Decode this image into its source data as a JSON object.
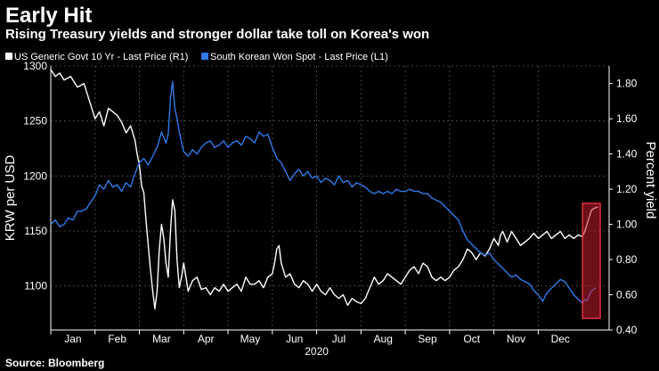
{
  "header": {
    "title": "Early Hit",
    "subtitle": "Rising Treasury yields and stronger dollar take toll on Korea's won"
  },
  "footer": {
    "source": "Source: Bloomberg"
  },
  "colors": {
    "us10y": "#ffffff",
    "krw": "#2f7bea",
    "highlight": "#e0303a"
  },
  "chart_data": {
    "type": "line",
    "xlabel": "2020",
    "x_ticks": [
      "Jan",
      "Feb",
      "Mar",
      "Apr",
      "May",
      "Jun",
      "Jul",
      "Aug",
      "Sep",
      "Oct",
      "Nov",
      "Dec"
    ],
    "x_range": [
      0,
      12.6
    ],
    "left_axis": {
      "label": "KRW per USD",
      "range": [
        1060,
        1300
      ],
      "ticks": [
        1100,
        1150,
        1200,
        1250,
        1300
      ]
    },
    "right_axis": {
      "label": "Percent yield",
      "range": [
        0.4,
        1.9
      ],
      "ticks": [
        "0.40",
        "0.60",
        "0.80",
        "1.00",
        "1.20",
        "1.40",
        "1.60",
        "1.80"
      ]
    },
    "grid": true,
    "legend": "top",
    "series": [
      {
        "name": "US Generic Govt 10 Yr - Last Price (R1)",
        "axis": "right",
        "points": [
          [
            0.0,
            1.88
          ],
          [
            0.1,
            1.84
          ],
          [
            0.2,
            1.86
          ],
          [
            0.3,
            1.82
          ],
          [
            0.45,
            1.84
          ],
          [
            0.6,
            1.78
          ],
          [
            0.75,
            1.8
          ],
          [
            0.9,
            1.68
          ],
          [
            1.0,
            1.6
          ],
          [
            1.1,
            1.64
          ],
          [
            1.2,
            1.56
          ],
          [
            1.3,
            1.66
          ],
          [
            1.4,
            1.64
          ],
          [
            1.5,
            1.62
          ],
          [
            1.6,
            1.58
          ],
          [
            1.7,
            1.52
          ],
          [
            1.8,
            1.56
          ],
          [
            1.9,
            1.48
          ],
          [
            1.95,
            1.4
          ],
          [
            2.0,
            1.34
          ],
          [
            2.05,
            1.22
          ],
          [
            2.1,
            1.18
          ],
          [
            2.15,
            1.02
          ],
          [
            2.2,
            0.88
          ],
          [
            2.25,
            0.74
          ],
          [
            2.3,
            0.62
          ],
          [
            2.35,
            0.52
          ],
          [
            2.4,
            0.62
          ],
          [
            2.45,
            0.86
          ],
          [
            2.5,
            1.0
          ],
          [
            2.55,
            0.92
          ],
          [
            2.6,
            0.78
          ],
          [
            2.65,
            0.7
          ],
          [
            2.7,
            0.96
          ],
          [
            2.75,
            1.14
          ],
          [
            2.8,
            1.08
          ],
          [
            2.85,
            0.8
          ],
          [
            2.9,
            0.64
          ],
          [
            2.95,
            0.7
          ],
          [
            3.0,
            0.78
          ],
          [
            3.1,
            0.62
          ],
          [
            3.2,
            0.68
          ],
          [
            3.3,
            0.7
          ],
          [
            3.4,
            0.63
          ],
          [
            3.5,
            0.64
          ],
          [
            3.6,
            0.6
          ],
          [
            3.7,
            0.64
          ],
          [
            3.8,
            0.62
          ],
          [
            3.9,
            0.66
          ],
          [
            4.0,
            0.62
          ],
          [
            4.1,
            0.64
          ],
          [
            4.2,
            0.66
          ],
          [
            4.3,
            0.62
          ],
          [
            4.4,
            0.7
          ],
          [
            4.5,
            0.66
          ],
          [
            4.6,
            0.66
          ],
          [
            4.7,
            0.68
          ],
          [
            4.8,
            0.64
          ],
          [
            4.9,
            0.7
          ],
          [
            5.0,
            0.72
          ],
          [
            5.05,
            0.78
          ],
          [
            5.1,
            0.86
          ],
          [
            5.15,
            0.88
          ],
          [
            5.2,
            0.78
          ],
          [
            5.3,
            0.7
          ],
          [
            5.4,
            0.72
          ],
          [
            5.5,
            0.66
          ],
          [
            5.6,
            0.64
          ],
          [
            5.7,
            0.68
          ],
          [
            5.8,
            0.66
          ],
          [
            5.9,
            0.62
          ],
          [
            6.0,
            0.66
          ],
          [
            6.1,
            0.62
          ],
          [
            6.2,
            0.6
          ],
          [
            6.3,
            0.64
          ],
          [
            6.4,
            0.6
          ],
          [
            6.5,
            0.58
          ],
          [
            6.6,
            0.6
          ],
          [
            6.7,
            0.54
          ],
          [
            6.8,
            0.58
          ],
          [
            6.9,
            0.56
          ],
          [
            7.0,
            0.55
          ],
          [
            7.1,
            0.58
          ],
          [
            7.2,
            0.64
          ],
          [
            7.3,
            0.7
          ],
          [
            7.4,
            0.66
          ],
          [
            7.5,
            0.68
          ],
          [
            7.6,
            0.72
          ],
          [
            7.7,
            0.7
          ],
          [
            7.8,
            0.68
          ],
          [
            7.9,
            0.66
          ],
          [
            8.0,
            0.7
          ],
          [
            8.1,
            0.74
          ],
          [
            8.2,
            0.76
          ],
          [
            8.3,
            0.72
          ],
          [
            8.4,
            0.78
          ],
          [
            8.5,
            0.76
          ],
          [
            8.6,
            0.7
          ],
          [
            8.7,
            0.68
          ],
          [
            8.8,
            0.7
          ],
          [
            8.9,
            0.68
          ],
          [
            9.0,
            0.7
          ],
          [
            9.1,
            0.74
          ],
          [
            9.2,
            0.76
          ],
          [
            9.3,
            0.8
          ],
          [
            9.4,
            0.86
          ],
          [
            9.5,
            0.84
          ],
          [
            9.6,
            0.8
          ],
          [
            9.7,
            0.84
          ],
          [
            9.8,
            0.82
          ],
          [
            9.9,
            0.86
          ],
          [
            10.0,
            0.92
          ],
          [
            10.1,
            0.88
          ],
          [
            10.15,
            0.94
          ],
          [
            10.2,
            0.96
          ],
          [
            10.3,
            0.9
          ],
          [
            10.4,
            0.96
          ],
          [
            10.5,
            0.92
          ],
          [
            10.6,
            0.88
          ],
          [
            10.7,
            0.9
          ],
          [
            10.8,
            0.92
          ],
          [
            10.9,
            0.95
          ],
          [
            11.0,
            0.92
          ],
          [
            11.1,
            0.94
          ],
          [
            11.2,
            0.96
          ],
          [
            11.3,
            0.92
          ],
          [
            11.4,
            0.94
          ],
          [
            11.5,
            0.96
          ],
          [
            11.6,
            0.92
          ],
          [
            11.7,
            0.94
          ],
          [
            11.8,
            0.92
          ],
          [
            11.9,
            0.94
          ],
          [
            12.0,
            0.93
          ],
          [
            12.05,
            0.96
          ],
          [
            12.1,
            1.0
          ],
          [
            12.15,
            1.04
          ],
          [
            12.2,
            1.08
          ],
          [
            12.25,
            1.09
          ],
          [
            12.35,
            1.1
          ]
        ]
      },
      {
        "name": "South Korean Won Spot - Last Price (L1)",
        "axis": "left",
        "points": [
          [
            0.0,
            1156
          ],
          [
            0.1,
            1160
          ],
          [
            0.2,
            1154
          ],
          [
            0.3,
            1156
          ],
          [
            0.4,
            1162
          ],
          [
            0.5,
            1160
          ],
          [
            0.6,
            1168
          ],
          [
            0.7,
            1168
          ],
          [
            0.8,
            1170
          ],
          [
            0.9,
            1176
          ],
          [
            1.0,
            1182
          ],
          [
            1.1,
            1192
          ],
          [
            1.2,
            1188
          ],
          [
            1.3,
            1196
          ],
          [
            1.4,
            1190
          ],
          [
            1.5,
            1192
          ],
          [
            1.6,
            1186
          ],
          [
            1.7,
            1194
          ],
          [
            1.8,
            1190
          ],
          [
            1.9,
            1202
          ],
          [
            2.0,
            1212
          ],
          [
            2.1,
            1216
          ],
          [
            2.2,
            1210
          ],
          [
            2.3,
            1218
          ],
          [
            2.4,
            1226
          ],
          [
            2.5,
            1240
          ],
          [
            2.6,
            1230
          ],
          [
            2.65,
            1238
          ],
          [
            2.7,
            1270
          ],
          [
            2.75,
            1286
          ],
          [
            2.8,
            1262
          ],
          [
            2.85,
            1252
          ],
          [
            2.9,
            1240
          ],
          [
            3.0,
            1222
          ],
          [
            3.1,
            1218
          ],
          [
            3.2,
            1224
          ],
          [
            3.3,
            1220
          ],
          [
            3.4,
            1226
          ],
          [
            3.5,
            1230
          ],
          [
            3.6,
            1232
          ],
          [
            3.7,
            1226
          ],
          [
            3.8,
            1228
          ],
          [
            3.9,
            1232
          ],
          [
            4.0,
            1226
          ],
          [
            4.1,
            1230
          ],
          [
            4.2,
            1232
          ],
          [
            4.3,
            1228
          ],
          [
            4.4,
            1236
          ],
          [
            4.5,
            1234
          ],
          [
            4.6,
            1230
          ],
          [
            4.7,
            1240
          ],
          [
            4.8,
            1236
          ],
          [
            4.9,
            1238
          ],
          [
            5.0,
            1226
          ],
          [
            5.1,
            1216
          ],
          [
            5.2,
            1212
          ],
          [
            5.3,
            1204
          ],
          [
            5.4,
            1196
          ],
          [
            5.5,
            1202
          ],
          [
            5.6,
            1206
          ],
          [
            5.7,
            1200
          ],
          [
            5.8,
            1204
          ],
          [
            5.9,
            1198
          ],
          [
            6.0,
            1200
          ],
          [
            6.1,
            1194
          ],
          [
            6.2,
            1198
          ],
          [
            6.3,
            1196
          ],
          [
            6.4,
            1192
          ],
          [
            6.5,
            1200
          ],
          [
            6.6,
            1194
          ],
          [
            6.7,
            1196
          ],
          [
            6.8,
            1190
          ],
          [
            6.9,
            1194
          ],
          [
            7.0,
            1192
          ],
          [
            7.1,
            1190
          ],
          [
            7.2,
            1186
          ],
          [
            7.3,
            1184
          ],
          [
            7.4,
            1186
          ],
          [
            7.5,
            1184
          ],
          [
            7.6,
            1186
          ],
          [
            7.7,
            1184
          ],
          [
            7.8,
            1188
          ],
          [
            7.9,
            1186
          ],
          [
            8.0,
            1186
          ],
          [
            8.1,
            1188
          ],
          [
            8.2,
            1186
          ],
          [
            8.3,
            1186
          ],
          [
            8.4,
            1184
          ],
          [
            8.5,
            1184
          ],
          [
            8.6,
            1180
          ],
          [
            8.7,
            1178
          ],
          [
            8.8,
            1176
          ],
          [
            8.9,
            1172
          ],
          [
            9.0,
            1168
          ],
          [
            9.1,
            1164
          ],
          [
            9.2,
            1160
          ],
          [
            9.3,
            1150
          ],
          [
            9.4,
            1142
          ],
          [
            9.5,
            1138
          ],
          [
            9.6,
            1134
          ],
          [
            9.7,
            1130
          ],
          [
            9.8,
            1128
          ],
          [
            9.9,
            1130
          ],
          [
            10.0,
            1124
          ],
          [
            10.1,
            1120
          ],
          [
            10.2,
            1116
          ],
          [
            10.3,
            1112
          ],
          [
            10.4,
            1108
          ],
          [
            10.5,
            1110
          ],
          [
            10.6,
            1106
          ],
          [
            10.7,
            1104
          ],
          [
            10.8,
            1102
          ],
          [
            10.9,
            1096
          ],
          [
            11.0,
            1092
          ],
          [
            11.1,
            1086
          ],
          [
            11.2,
            1094
          ],
          [
            11.3,
            1098
          ],
          [
            11.4,
            1102
          ],
          [
            11.5,
            1106
          ],
          [
            11.6,
            1104
          ],
          [
            11.7,
            1098
          ],
          [
            11.8,
            1092
          ],
          [
            11.9,
            1088
          ],
          [
            12.0,
            1084
          ],
          [
            12.05,
            1088
          ],
          [
            12.1,
            1086
          ],
          [
            12.2,
            1096
          ],
          [
            12.3,
            1098
          ]
        ]
      }
    ],
    "annotations": [
      {
        "type": "highlight-box",
        "x_range": [
          12.0,
          12.4
        ]
      }
    ]
  }
}
